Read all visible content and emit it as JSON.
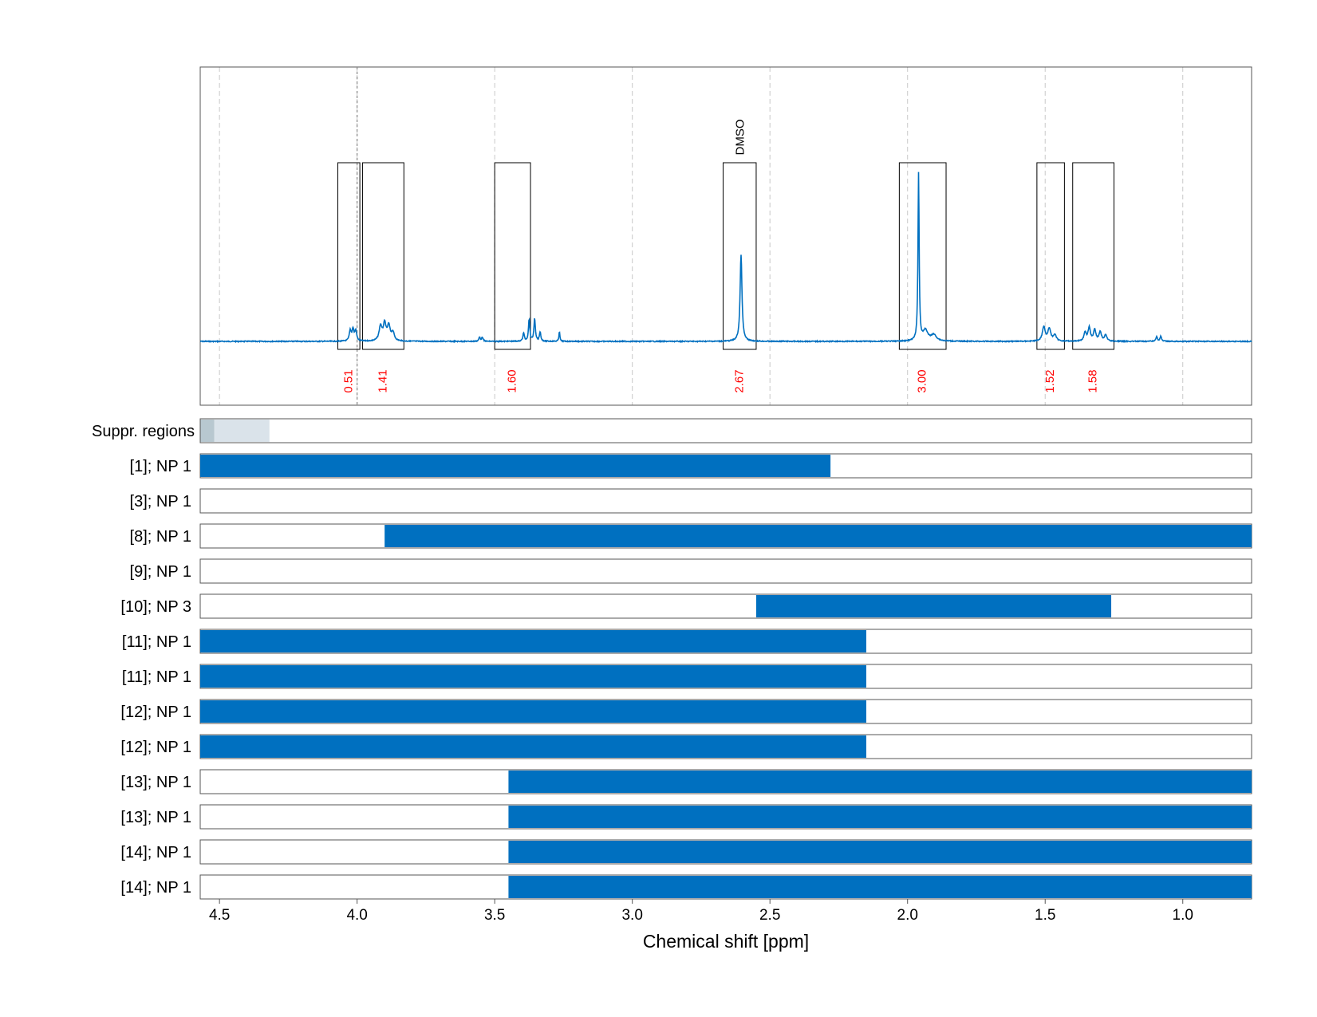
{
  "chart_data": {
    "type": "nmr-spectrum",
    "xlabel": "Chemical shift [ppm]",
    "xlim": [
      4.57,
      0.75
    ],
    "x_ticks": [
      4.5,
      4.0,
      3.5,
      3.0,
      2.5,
      2.0,
      1.5,
      1.0
    ],
    "x_tick_labels": [
      "4.5",
      "4.0",
      "3.5",
      "3.0",
      "2.5",
      "2.0",
      "1.5",
      "1.0"
    ],
    "colors": {
      "spectrum": "#0070c0",
      "integral": "#ff0000",
      "bar": "#0070c0",
      "suppr_dark": "#b8c8d0",
      "suppr_light": "#dae3ea"
    },
    "spectrum": {
      "baseline_ppm": [
        4.57,
        0.75
      ],
      "peaks": [
        {
          "ppm": 4.025,
          "height": 0.05,
          "width": 0.004
        },
        {
          "ppm": 4.015,
          "height": 0.055,
          "width": 0.004
        },
        {
          "ppm": 4.005,
          "height": 0.05,
          "width": 0.004
        },
        {
          "ppm": 3.915,
          "height": 0.07,
          "width": 0.006
        },
        {
          "ppm": 3.9,
          "height": 0.08,
          "width": 0.006
        },
        {
          "ppm": 3.885,
          "height": 0.07,
          "width": 0.006
        },
        {
          "ppm": 3.87,
          "height": 0.04,
          "width": 0.006
        },
        {
          "ppm": 3.555,
          "height": 0.02,
          "width": 0.003
        },
        {
          "ppm": 3.545,
          "height": 0.02,
          "width": 0.003
        },
        {
          "ppm": 3.395,
          "height": 0.04,
          "width": 0.003
        },
        {
          "ppm": 3.375,
          "height": 0.105,
          "width": 0.003
        },
        {
          "ppm": 3.355,
          "height": 0.11,
          "width": 0.003
        },
        {
          "ppm": 3.335,
          "height": 0.045,
          "width": 0.003
        },
        {
          "ppm": 3.265,
          "height": 0.05,
          "width": 0.002
        },
        {
          "ppm": 2.605,
          "height": 0.42,
          "width": 0.004
        },
        {
          "ppm": 1.96,
          "height": 0.81,
          "width": 0.0025
        },
        {
          "ppm": 1.935,
          "height": 0.05,
          "width": 0.01
        },
        {
          "ppm": 1.905,
          "height": 0.03,
          "width": 0.012
        },
        {
          "ppm": 1.505,
          "height": 0.07,
          "width": 0.006
        },
        {
          "ppm": 1.485,
          "height": 0.06,
          "width": 0.006
        },
        {
          "ppm": 1.465,
          "height": 0.03,
          "width": 0.006
        },
        {
          "ppm": 1.355,
          "height": 0.04,
          "width": 0.005
        },
        {
          "ppm": 1.34,
          "height": 0.065,
          "width": 0.005
        },
        {
          "ppm": 1.32,
          "height": 0.055,
          "width": 0.005
        },
        {
          "ppm": 1.3,
          "height": 0.045,
          "width": 0.005
        },
        {
          "ppm": 1.28,
          "height": 0.03,
          "width": 0.005
        },
        {
          "ppm": 1.095,
          "height": 0.025,
          "width": 0.003
        },
        {
          "ppm": 1.08,
          "height": 0.025,
          "width": 0.003
        }
      ]
    },
    "integration_regions": [
      {
        "from": 4.07,
        "to": 3.99,
        "integral": "0.51"
      },
      {
        "from": 3.98,
        "to": 3.83,
        "integral": "1.41"
      },
      {
        "from": 3.5,
        "to": 3.37,
        "integral": "1.60"
      },
      {
        "from": 2.67,
        "to": 2.55,
        "integral": "2.67",
        "label": "DMSO"
      },
      {
        "from": 2.03,
        "to": 1.86,
        "integral": "3.00"
      },
      {
        "from": 1.53,
        "to": 1.43,
        "integral": "1.52"
      },
      {
        "from": 1.4,
        "to": 1.25,
        "integral": "1.58"
      }
    ],
    "reference_line_ppm": 4.0,
    "suppressed_regions": {
      "label": "Suppr. regions",
      "regions": [
        {
          "from": 4.57,
          "to": 4.52,
          "shade": "dark"
        },
        {
          "from": 4.52,
          "to": 4.32,
          "shade": "light"
        }
      ]
    },
    "bar_rows": [
      {
        "label": "[1]; NP 1",
        "from": 4.57,
        "to": 2.28
      },
      {
        "label": "[3]; NP 1",
        "from": null,
        "to": null
      },
      {
        "label": "[8]; NP 1",
        "from": 3.9,
        "to": 0.75
      },
      {
        "label": "[9]; NP 1",
        "from": null,
        "to": null
      },
      {
        "label": "[10]; NP 3",
        "from": 2.55,
        "to": 1.26
      },
      {
        "label": "[11]; NP 1",
        "from": 4.57,
        "to": 2.15
      },
      {
        "label": "[11]; NP 1",
        "from": 4.57,
        "to": 2.15
      },
      {
        "label": "[12]; NP 1",
        "from": 4.57,
        "to": 2.15
      },
      {
        "label": "[12]; NP 1",
        "from": 4.57,
        "to": 2.15
      },
      {
        "label": "[13]; NP 1",
        "from": 3.45,
        "to": 0.75
      },
      {
        "label": "[13]; NP 1",
        "from": 3.45,
        "to": 0.75
      },
      {
        "label": "[14]; NP 1",
        "from": 3.45,
        "to": 0.75
      },
      {
        "label": "[14]; NP 1",
        "from": 3.45,
        "to": 0.75
      }
    ]
  }
}
